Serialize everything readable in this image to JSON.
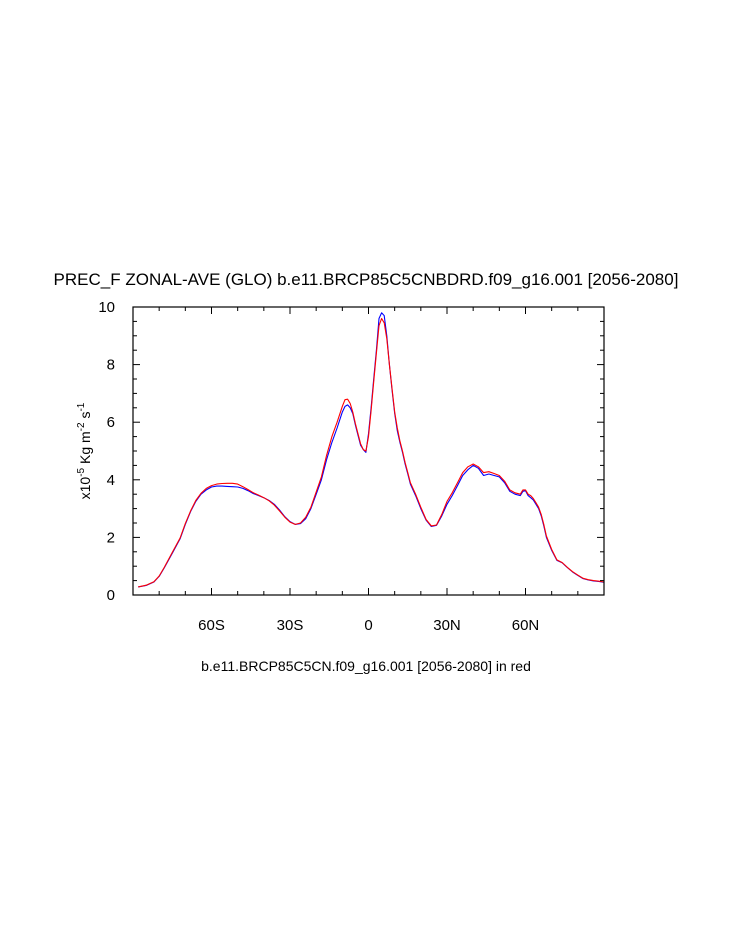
{
  "chart_data": {
    "type": "line",
    "title": "PREC_F ZONAL-AVE (GLO) b.e11.BRCP85C5CNBDRD.f09_g16.001 [2056-2080]",
    "ylabel_parts": {
      "prefix": "x10",
      "exp1": "-5",
      "mid1": " Kg m",
      "exp2": "-2",
      "mid2": " s",
      "exp3": "-1"
    },
    "xlabel": "b.e11.BRCP85C5CN.f09_g16.001 [2056-2080] in red",
    "xlim": [
      -90,
      90
    ],
    "ylim": [
      0,
      10
    ],
    "x_ticks": [
      {
        "value": -60,
        "label": "60S"
      },
      {
        "value": -30,
        "label": "30S"
      },
      {
        "value": 0,
        "label": "0"
      },
      {
        "value": 30,
        "label": "30N"
      },
      {
        "value": 60,
        "label": "60N"
      }
    ],
    "y_ticks": [
      {
        "value": 0,
        "label": "0"
      },
      {
        "value": 2,
        "label": "2"
      },
      {
        "value": 4,
        "label": "4"
      },
      {
        "value": 6,
        "label": "6"
      },
      {
        "value": 8,
        "label": "8"
      },
      {
        "value": 10,
        "label": "10"
      }
    ],
    "series": [
      {
        "color": "#0000ff",
        "x": [
          -88,
          -85,
          -82,
          -80,
          -78,
          -75,
          -72,
          -70,
          -68,
          -66,
          -64,
          -62,
          -60,
          -58,
          -56,
          -54,
          -52,
          -50,
          -48,
          -46,
          -44,
          -42,
          -40,
          -38,
          -36,
          -34,
          -32,
          -30,
          -28,
          -26,
          -24,
          -22,
          -20,
          -18,
          -16,
          -14,
          -12,
          -10,
          -9,
          -8,
          -7,
          -6,
          -5,
          -4,
          -3,
          -2,
          -1,
          0,
          1,
          2,
          3,
          4,
          5,
          6,
          7,
          8,
          9,
          10,
          11,
          12,
          13,
          14,
          15,
          16,
          18,
          20,
          22,
          24,
          26,
          28,
          30,
          32,
          34,
          36,
          38,
          40,
          42,
          44,
          46,
          48,
          50,
          52,
          54,
          56,
          58,
          59,
          60,
          61,
          62,
          63,
          64,
          65,
          66,
          67,
          68,
          70,
          72,
          74,
          76,
          78,
          80,
          82,
          84,
          86,
          88,
          90
        ],
        "y": [
          0.28,
          0.33,
          0.45,
          0.65,
          0.95,
          1.45,
          1.95,
          2.45,
          2.9,
          3.25,
          3.5,
          3.65,
          3.75,
          3.78,
          3.78,
          3.77,
          3.76,
          3.75,
          3.7,
          3.62,
          3.52,
          3.45,
          3.38,
          3.28,
          3.15,
          2.95,
          2.72,
          2.55,
          2.45,
          2.48,
          2.65,
          3.0,
          3.5,
          4.0,
          4.7,
          5.3,
          5.8,
          6.35,
          6.55,
          6.6,
          6.5,
          6.3,
          5.9,
          5.55,
          5.2,
          5.05,
          4.95,
          5.6,
          6.5,
          7.5,
          8.5,
          9.6,
          9.8,
          9.7,
          9.0,
          8.0,
          7.1,
          6.3,
          5.7,
          5.3,
          4.95,
          4.55,
          4.2,
          3.85,
          3.45,
          3.0,
          2.6,
          2.38,
          2.42,
          2.75,
          3.15,
          3.45,
          3.8,
          4.15,
          4.35,
          4.5,
          4.4,
          4.15,
          4.2,
          4.15,
          4.1,
          3.9,
          3.6,
          3.5,
          3.45,
          3.6,
          3.62,
          3.45,
          3.38,
          3.3,
          3.15,
          3.0,
          2.75,
          2.4,
          2.0,
          1.55,
          1.2,
          1.12,
          0.95,
          0.8,
          0.68,
          0.57,
          0.52,
          0.49,
          0.47,
          0.44
        ]
      },
      {
        "color": "#ff0000",
        "x": [
          -88,
          -85,
          -82,
          -80,
          -78,
          -75,
          -72,
          -70,
          -68,
          -66,
          -64,
          -62,
          -60,
          -58,
          -56,
          -54,
          -52,
          -50,
          -48,
          -46,
          -44,
          -42,
          -40,
          -38,
          -36,
          -34,
          -32,
          -30,
          -28,
          -26,
          -24,
          -22,
          -20,
          -18,
          -16,
          -14,
          -12,
          -10,
          -9,
          -8,
          -7,
          -6,
          -5,
          -4,
          -3,
          -2,
          -1,
          0,
          1,
          2,
          3,
          4,
          5,
          6,
          7,
          8,
          9,
          10,
          11,
          12,
          13,
          14,
          15,
          16,
          18,
          20,
          22,
          24,
          26,
          28,
          30,
          32,
          34,
          36,
          38,
          40,
          42,
          44,
          46,
          48,
          50,
          52,
          54,
          56,
          58,
          59,
          60,
          61,
          62,
          63,
          64,
          65,
          66,
          67,
          68,
          70,
          72,
          74,
          76,
          78,
          80,
          82,
          84,
          86,
          88,
          90
        ],
        "y": [
          0.28,
          0.34,
          0.46,
          0.66,
          0.97,
          1.48,
          1.98,
          2.48,
          2.92,
          3.28,
          3.53,
          3.7,
          3.8,
          3.85,
          3.87,
          3.88,
          3.88,
          3.85,
          3.76,
          3.66,
          3.55,
          3.47,
          3.38,
          3.27,
          3.12,
          2.92,
          2.7,
          2.53,
          2.45,
          2.5,
          2.7,
          3.05,
          3.58,
          4.1,
          4.85,
          5.5,
          6.0,
          6.55,
          6.78,
          6.8,
          6.65,
          6.35,
          5.95,
          5.6,
          5.25,
          5.05,
          5.0,
          5.5,
          6.4,
          7.4,
          8.4,
          9.35,
          9.6,
          9.45,
          8.9,
          8.0,
          7.15,
          6.35,
          5.8,
          5.35,
          5.0,
          4.6,
          4.25,
          3.9,
          3.5,
          3.05,
          2.62,
          2.4,
          2.43,
          2.8,
          3.25,
          3.55,
          3.9,
          4.25,
          4.45,
          4.55,
          4.45,
          4.25,
          4.28,
          4.22,
          4.15,
          3.95,
          3.65,
          3.55,
          3.5,
          3.65,
          3.65,
          3.5,
          3.45,
          3.35,
          3.2,
          3.05,
          2.8,
          2.45,
          2.05,
          1.58,
          1.22,
          1.13,
          0.96,
          0.81,
          0.69,
          0.58,
          0.53,
          0.5,
          0.48,
          0.45
        ]
      }
    ]
  }
}
